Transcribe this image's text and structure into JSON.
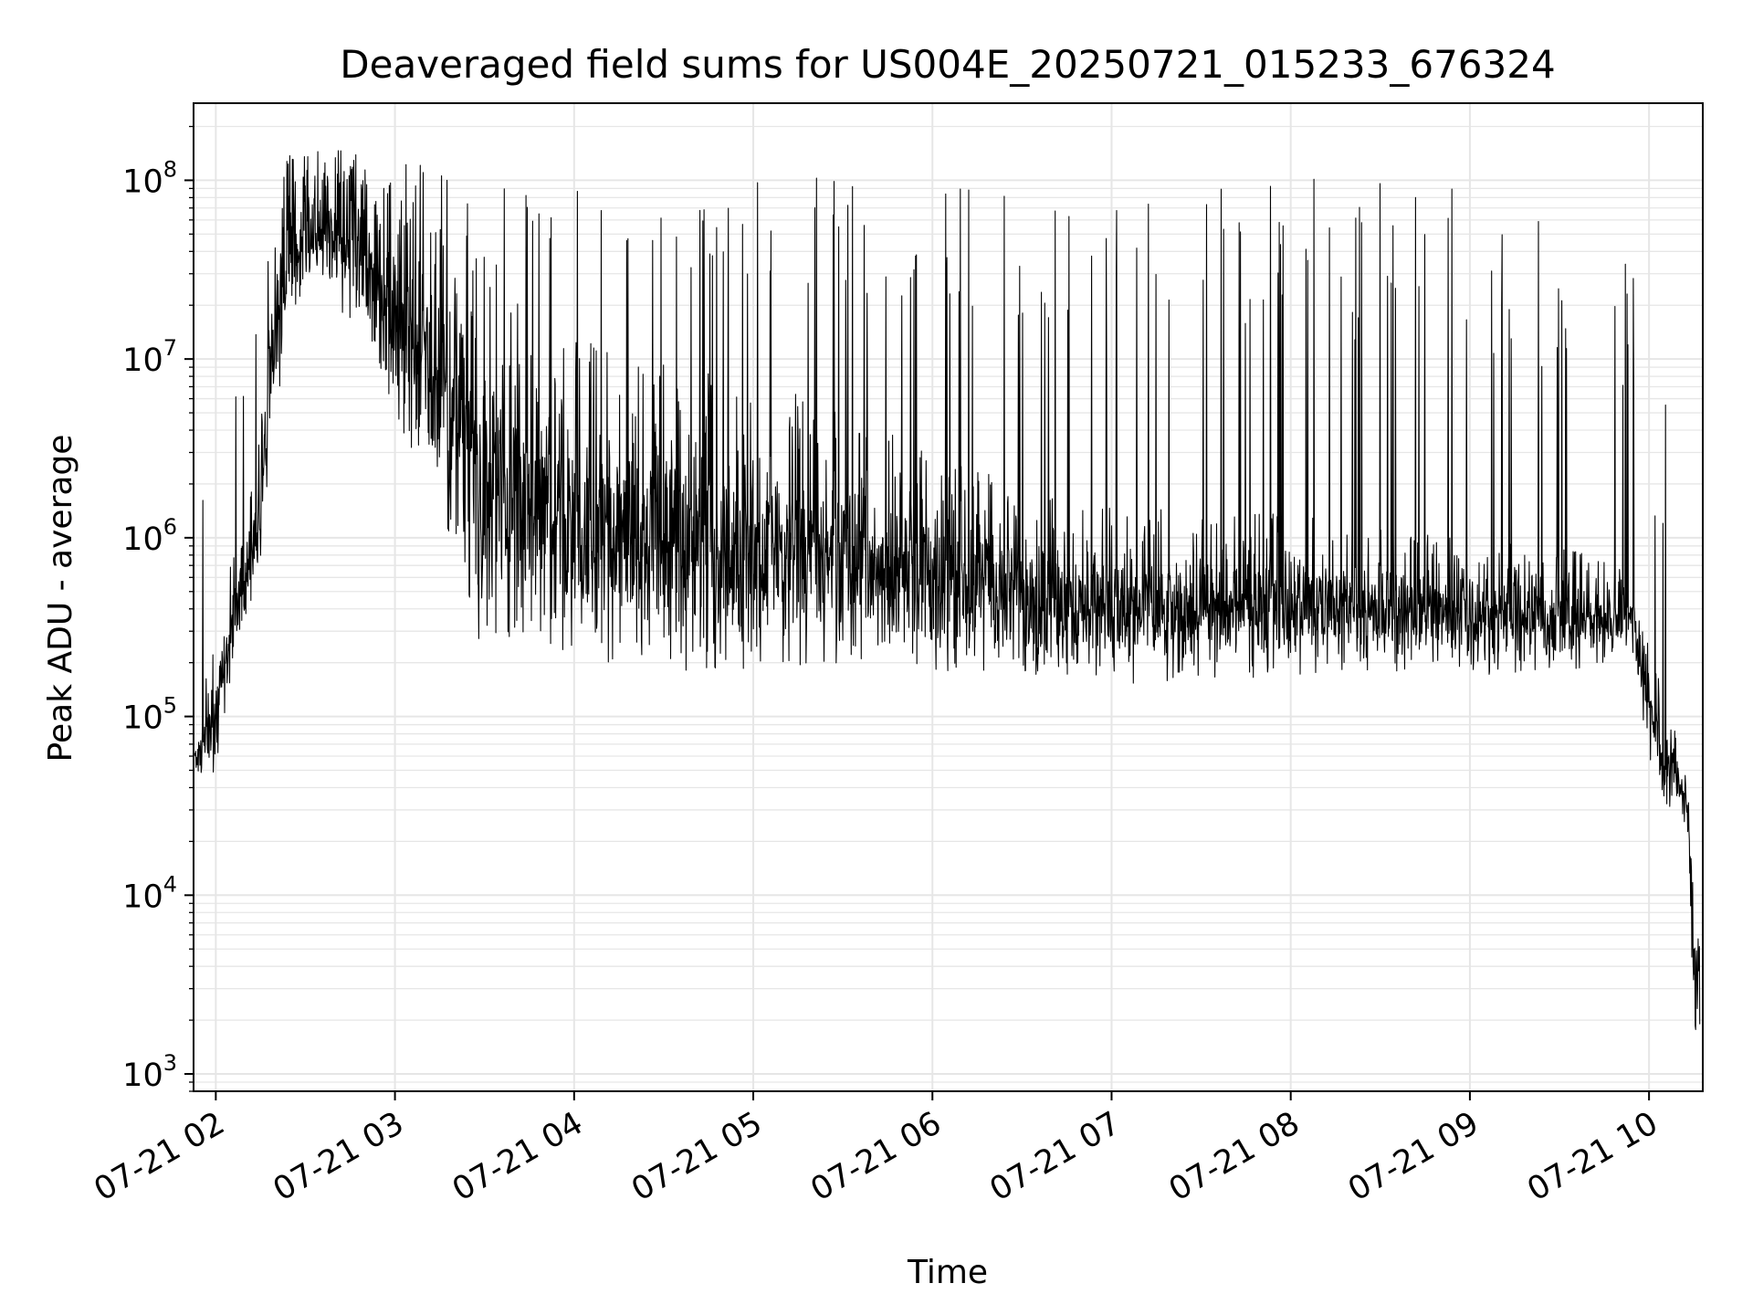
{
  "chart_data": {
    "type": "line",
    "title": "Deaveraged field sums for US004E_20250721_015233_676324",
    "xlabel": "Time",
    "ylabel": "Peak ADU - average",
    "yscale": "log",
    "ylim": [
      800,
      270000000
    ],
    "xlim": [
      "2025-07-21 01:52:33",
      "2025-07-21 10:18:00"
    ],
    "grid": true,
    "legend": "none",
    "line_color": "#000000",
    "grid_color": "#e6e6e6",
    "x_ticks": [
      {
        "t": "2025-07-21 02:00",
        "label": "07-21 02"
      },
      {
        "t": "2025-07-21 03:00",
        "label": "07-21 03"
      },
      {
        "t": "2025-07-21 04:00",
        "label": "07-21 04"
      },
      {
        "t": "2025-07-21 05:00",
        "label": "07-21 05"
      },
      {
        "t": "2025-07-21 06:00",
        "label": "07-21 06"
      },
      {
        "t": "2025-07-21 07:00",
        "label": "07-21 07"
      },
      {
        "t": "2025-07-21 08:00",
        "label": "07-21 08"
      },
      {
        "t": "2025-07-21 09:00",
        "label": "07-21 09"
      },
      {
        "t": "2025-07-21 10:00",
        "label": "07-21 10"
      }
    ],
    "y_ticks": [
      {
        "value": 1000,
        "base": "10",
        "exp": "3"
      },
      {
        "value": 10000,
        "base": "10",
        "exp": "4"
      },
      {
        "value": 100000,
        "base": "10",
        "exp": "5"
      },
      {
        "value": 1000000,
        "base": "10",
        "exp": "6"
      },
      {
        "value": 10000000,
        "base": "10",
        "exp": "7"
      },
      {
        "value": 100000000,
        "base": "10",
        "exp": "8"
      }
    ],
    "series": [
      {
        "x": [
          "2025-07-21 01:53",
          "2025-07-21 02:00",
          "2025-07-21 02:05",
          "2025-07-21 02:10",
          "2025-07-21 02:15",
          "2025-07-21 02:20",
          "2025-07-21 02:25",
          "2025-07-21 02:30",
          "2025-07-21 02:40",
          "2025-07-21 02:50",
          "2025-07-21 03:00",
          "2025-07-21 03:10",
          "2025-07-21 03:20",
          "2025-07-21 03:30",
          "2025-07-21 03:40",
          "2025-07-21 03:50",
          "2025-07-21 04:00",
          "2025-07-21 04:30",
          "2025-07-21 05:00",
          "2025-07-21 05:30",
          "2025-07-21 06:00",
          "2025-07-21 06:30",
          "2025-07-21 07:00",
          "2025-07-21 07:30",
          "2025-07-21 08:00",
          "2025-07-21 08:30",
          "2025-07-21 09:00",
          "2025-07-21 09:30",
          "2025-07-21 09:55",
          "2025-07-21 10:00",
          "2025-07-21 10:05",
          "2025-07-21 10:10",
          "2025-07-21 10:13",
          "2025-07-21 10:15",
          "2025-07-21 10:17"
        ],
        "lo": [
          40000,
          50000,
          150000,
          350000,
          600000,
          5000000,
          15000000,
          20000000,
          20000000,
          10000000,
          5000000,
          2000000,
          800000,
          200000,
          200000,
          250000,
          200000,
          180000,
          180000,
          200000,
          180000,
          170000,
          150000,
          150000,
          170000,
          180000,
          170000,
          180000,
          200000,
          60000,
          30000,
          30000,
          20000,
          1500,
          1500
        ],
        "mid": [
          60000,
          80000,
          400000,
          700000,
          1500000,
          20000000,
          50000000,
          70000000,
          100000000,
          60000000,
          30000000,
          10000000,
          3000000,
          800000,
          700000,
          700000,
          600000,
          600000,
          550000,
          500000,
          450000,
          400000,
          350000,
          350000,
          380000,
          400000,
          380000,
          380000,
          400000,
          150000,
          50000,
          55000,
          40000,
          5000,
          3000
        ],
        "hi": [
          90000,
          300000,
          700000,
          1200000,
          5000000,
          70000000,
          110000000,
          120000000,
          140000000,
          130000000,
          110000000,
          90000000,
          70000000,
          40000000,
          30000000,
          20000000,
          15000000,
          10000000,
          8000000,
          5000000,
          3000000,
          2000000,
          1500000,
          1500000,
          1500000,
          1200000,
          1000000,
          900000,
          700000,
          300000,
          120000,
          80000,
          70000,
          12000,
          12000
        ],
        "spike_peak": [
          2500000,
          5000000,
          6000000,
          20000000,
          30000000,
          80000000,
          150000000,
          150000000,
          150000000,
          140000000,
          130000000,
          130000000,
          100000000,
          90000000,
          100000000,
          100000000,
          100000000,
          100000000,
          110000000,
          100000000,
          100000000,
          100000000,
          90000000,
          90000000,
          100000000,
          120000000,
          100000000,
          60000000,
          50000000,
          7000000,
          6000000,
          5000000,
          3000000,
          11000,
          11000
        ]
      }
    ]
  }
}
